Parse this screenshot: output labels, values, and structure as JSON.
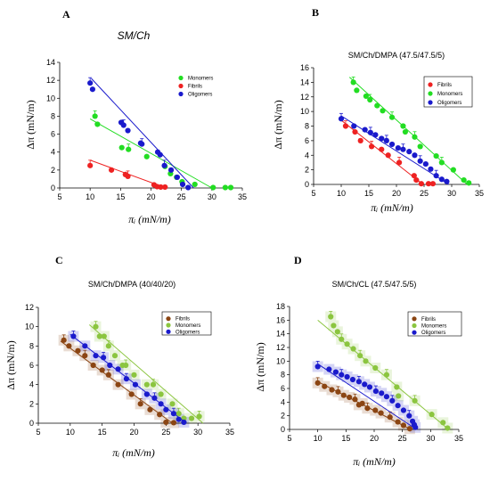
{
  "chart_data": [
    {
      "type": "scatter",
      "panel_label": "A",
      "title": "SM/Ch",
      "xlabel": "π_i (mN/m)",
      "ylabel": "Δπ (mN/m)",
      "xlim": [
        5,
        35
      ],
      "ylim": [
        0,
        14
      ],
      "xticks": [
        5,
        10,
        15,
        20,
        25,
        30,
        35
      ],
      "yticks": [
        0,
        2,
        4,
        6,
        8,
        10,
        12,
        14
      ],
      "legend": "top-right",
      "series": [
        {
          "name": "Monomers",
          "color": "#22dd22",
          "points": [
            [
              10.8,
              8.0
            ],
            [
              11.2,
              7.1
            ],
            [
              15.2,
              4.5
            ],
            [
              16.3,
              4.3
            ],
            [
              19.3,
              3.5
            ],
            [
              22.3,
              2.4
            ],
            [
              23.2,
              1.6
            ],
            [
              24.2,
              1.2
            ],
            [
              25.1,
              0.7
            ],
            [
              27.2,
              0.4
            ],
            [
              30.2,
              0.05
            ],
            [
              32.2,
              0.05
            ],
            [
              33.1,
              0.05
            ]
          ],
          "fit": [
            [
              10,
              7.7
            ],
            [
              30,
              0
            ]
          ]
        },
        {
          "name": "Fibrils",
          "color": "#ee2222",
          "points": [
            [
              10,
              2.5
            ],
            [
              13.5,
              2.0
            ],
            [
              15.8,
              1.5
            ],
            [
              16.2,
              1.3
            ],
            [
              20.5,
              0.35
            ],
            [
              21,
              0.15
            ],
            [
              21.6,
              0.1
            ],
            [
              22.3,
              0.1
            ]
          ],
          "fit": [
            [
              10,
              3.1
            ],
            [
              22.5,
              0
            ]
          ]
        },
        {
          "name": "Oligomers",
          "color": "#1a1acc",
          "points": [
            [
              10,
              11.7
            ],
            [
              10.4,
              11.0
            ],
            [
              15.1,
              7.3
            ],
            [
              15.5,
              7.0
            ],
            [
              16.2,
              6.4
            ],
            [
              18.3,
              5.0
            ],
            [
              18.5,
              4.9
            ],
            [
              21.1,
              4.0
            ],
            [
              21.5,
              3.7
            ],
            [
              22.2,
              2.5
            ],
            [
              23.3,
              2.0
            ],
            [
              24.3,
              1.2
            ],
            [
              25.2,
              0.4
            ],
            [
              26.1,
              0.05
            ]
          ],
          "fit": [
            [
              10.2,
              12.2
            ],
            [
              27,
              0
            ]
          ]
        }
      ]
    },
    {
      "type": "scatter",
      "panel_label": "B",
      "title": "SM/Ch/DMPA (47.5/47.5/5)",
      "xlabel": "π_i (mN/m)",
      "ylabel": "Δπ (mN/m)",
      "xlim": [
        5,
        35
      ],
      "ylim": [
        0,
        16
      ],
      "xticks": [
        5,
        10,
        15,
        20,
        25,
        30,
        35
      ],
      "yticks": [
        0,
        2,
        4,
        6,
        8,
        10,
        12,
        14,
        16
      ],
      "legend": "top-right",
      "series": [
        {
          "name": "Fibrils",
          "color": "#ee2222",
          "points": [
            [
              10.8,
              8.0
            ],
            [
              12.5,
              7.2
            ],
            [
              13.5,
              6.0
            ],
            [
              15.5,
              5.2
            ],
            [
              17.3,
              4.8
            ],
            [
              18.5,
              4.0
            ],
            [
              20.5,
              3.0
            ],
            [
              23.2,
              1.2
            ],
            [
              23.6,
              0.6
            ],
            [
              24.5,
              0.1
            ],
            [
              25.8,
              0.1
            ],
            [
              26.6,
              0.1
            ]
          ],
          "fit": [
            [
              10,
              8.8
            ],
            [
              24.8,
              0
            ]
          ]
        },
        {
          "name": "Monomers",
          "color": "#22dd22",
          "points": [
            [
              12.2,
              14.0
            ],
            [
              12.8,
              12.9
            ],
            [
              14.5,
              12.1
            ],
            [
              15.2,
              11.6
            ],
            [
              16.5,
              10.8
            ],
            [
              17.5,
              10.1
            ],
            [
              19.2,
              9.2
            ],
            [
              21.2,
              8.0
            ],
            [
              21.6,
              7.2
            ],
            [
              23.3,
              6.5
            ],
            [
              24.3,
              5.2
            ],
            [
              27.2,
              3.9
            ],
            [
              28.2,
              3.0
            ],
            [
              30.3,
              2.0
            ],
            [
              32.2,
              0.6
            ],
            [
              33.1,
              0.2
            ]
          ],
          "fit": [
            [
              11.5,
              14.7
            ],
            [
              32.8,
              0
            ]
          ]
        },
        {
          "name": "Oligomers",
          "color": "#1a1acc",
          "points": [
            [
              10,
              9.0
            ],
            [
              12.3,
              8.0
            ],
            [
              14.3,
              7.5
            ],
            [
              15.3,
              7.1
            ],
            [
              16.2,
              6.8
            ],
            [
              17.3,
              6.3
            ],
            [
              18.2,
              6.0
            ],
            [
              19.2,
              5.5
            ],
            [
              20.3,
              5.0
            ],
            [
              21.2,
              4.8
            ],
            [
              22.3,
              4.5
            ],
            [
              23.3,
              4.0
            ],
            [
              24.3,
              3.2
            ],
            [
              25.3,
              2.8
            ],
            [
              26.2,
              2.1
            ],
            [
              27.2,
              1.2
            ],
            [
              28.2,
              0.7
            ],
            [
              29.1,
              0.4
            ]
          ],
          "fit": [
            [
              10,
              9.4
            ],
            [
              29.5,
              0
            ]
          ]
        }
      ]
    },
    {
      "type": "scatter",
      "panel_label": "C",
      "title": "SM/Ch/DMPA (40/40/20)",
      "xlabel": "π_i (mN/m)",
      "ylabel": "Δπ (mN/m)",
      "xlim": [
        5,
        35
      ],
      "ylim": [
        0,
        12
      ],
      "xticks": [
        5,
        10,
        15,
        20,
        25,
        30,
        35
      ],
      "yticks": [
        0,
        2,
        4,
        6,
        8,
        10,
        12
      ],
      "legend": "top-right",
      "series": [
        {
          "name": "Fibrils",
          "color": "#8b4513",
          "points": [
            [
              9,
              8.6
            ],
            [
              9.8,
              8.0
            ],
            [
              11.2,
              7.5
            ],
            [
              12.3,
              7.0
            ],
            [
              13.6,
              6.0
            ],
            [
              15,
              5.5
            ],
            [
              16,
              5.0
            ],
            [
              17.5,
              4.0
            ],
            [
              19.6,
              3.0
            ],
            [
              21,
              2.0
            ],
            [
              22.5,
              1.4
            ],
            [
              24,
              0.9
            ],
            [
              25,
              0.1
            ],
            [
              26.2,
              0.05
            ]
          ],
          "fit": [
            [
              8.5,
              8.5
            ],
            [
              26,
              0
            ]
          ]
        },
        {
          "name": "Monomers",
          "color": "#8bc53f",
          "points": [
            [
              14,
              10.0
            ],
            [
              14.6,
              9.0
            ],
            [
              15.3,
              9.0
            ],
            [
              16,
              8.0
            ],
            [
              17,
              7.0
            ],
            [
              18.2,
              6.0
            ],
            [
              18.7,
              6.0
            ],
            [
              20,
              5.0
            ],
            [
              22,
              4.0
            ],
            [
              23,
              4.0
            ],
            [
              24.2,
              3.0
            ],
            [
              26,
              2.0
            ],
            [
              27,
              1.0
            ],
            [
              27.8,
              0.5
            ],
            [
              29,
              0.5
            ],
            [
              30.2,
              0.7
            ]
          ],
          "fit": [
            [
              13,
              10.2
            ],
            [
              30.8,
              0
            ]
          ]
        },
        {
          "name": "Oligomers",
          "color": "#1a1acc",
          "points": [
            [
              10.5,
              9.0
            ],
            [
              12.3,
              8.0
            ],
            [
              14,
              7.0
            ],
            [
              15.2,
              6.8
            ],
            [
              16.2,
              6.0
            ],
            [
              17.5,
              5.6
            ],
            [
              18.8,
              4.6
            ],
            [
              20.2,
              4.0
            ],
            [
              22,
              3.0
            ],
            [
              23.2,
              2.6
            ],
            [
              24.2,
              2.0
            ],
            [
              25,
              1.4
            ],
            [
              26.2,
              1.0
            ],
            [
              27,
              0.4
            ],
            [
              27.8,
              0.1
            ]
          ],
          "fit": [
            [
              10,
              9.2
            ],
            [
              28.2,
              0
            ]
          ]
        }
      ]
    },
    {
      "type": "scatter",
      "panel_label": "D",
      "title": "SM/Ch/CL (47.5/47.5/5)",
      "xlabel": "π_i (mN/m)",
      "ylabel": "Δπ (mN/m)",
      "xlim": [
        5,
        35
      ],
      "ylim": [
        0,
        18
      ],
      "xticks": [
        5,
        10,
        15,
        20,
        25,
        30,
        35
      ],
      "yticks": [
        0,
        2,
        4,
        6,
        8,
        10,
        12,
        14,
        16,
        18
      ],
      "legend": "top-right",
      "series": [
        {
          "name": "Fibrils",
          "color": "#8b4513",
          "points": [
            [
              10,
              6.8
            ],
            [
              11.2,
              6.3
            ],
            [
              12.5,
              5.8
            ],
            [
              13.6,
              5.5
            ],
            [
              14.6,
              5.0
            ],
            [
              15.6,
              4.7
            ],
            [
              16.6,
              4.4
            ],
            [
              17.3,
              3.6
            ],
            [
              17.9,
              3.8
            ],
            [
              18.8,
              3.1
            ],
            [
              20.2,
              2.8
            ],
            [
              21.2,
              2.4
            ],
            [
              22.8,
              1.8
            ],
            [
              24.2,
              1.1
            ],
            [
              25.2,
              0.6
            ],
            [
              26.3,
              0.1
            ]
          ],
          "fit": [
            [
              10,
              7.0
            ],
            [
              26.5,
              0
            ]
          ]
        },
        {
          "name": "Monomers",
          "color": "#8bc53f",
          "points": [
            [
              12.3,
              16.5
            ],
            [
              12.8,
              15.2
            ],
            [
              13.5,
              14.3
            ],
            [
              14.2,
              13.2
            ],
            [
              15.2,
              12.5
            ],
            [
              16.3,
              11.8
            ],
            [
              17.5,
              10.8
            ],
            [
              18.5,
              10.0
            ],
            [
              20.2,
              9.0
            ],
            [
              22.2,
              8.0
            ],
            [
              24,
              6.2
            ],
            [
              24.3,
              4.9
            ],
            [
              27.2,
              4.2
            ],
            [
              30.2,
              2.2
            ],
            [
              32.2,
              1.0
            ],
            [
              33,
              0.2
            ]
          ],
          "fit": [
            [
              10,
              16.0
            ],
            [
              33.2,
              0
            ]
          ]
        },
        {
          "name": "Oligomers",
          "color": "#1a1acc",
          "points": [
            [
              10,
              9.2
            ],
            [
              12,
              8.8
            ],
            [
              13.2,
              8.4
            ],
            [
              14.2,
              8.0
            ],
            [
              15.2,
              7.7
            ],
            [
              16.2,
              7.3
            ],
            [
              17.3,
              7.0
            ],
            [
              18.3,
              6.6
            ],
            [
              19.2,
              6.2
            ],
            [
              20.3,
              5.6
            ],
            [
              21.3,
              5.3
            ],
            [
              22.2,
              4.8
            ],
            [
              23.2,
              4.2
            ],
            [
              24.2,
              3.5
            ],
            [
              25.2,
              2.8
            ],
            [
              26.2,
              2.0
            ],
            [
              26.8,
              1.2
            ],
            [
              27.1,
              0.7
            ],
            [
              27.3,
              0.3
            ]
          ],
          "fit": [
            [
              10,
              9.6
            ],
            [
              27.5,
              0
            ]
          ]
        }
      ]
    }
  ]
}
